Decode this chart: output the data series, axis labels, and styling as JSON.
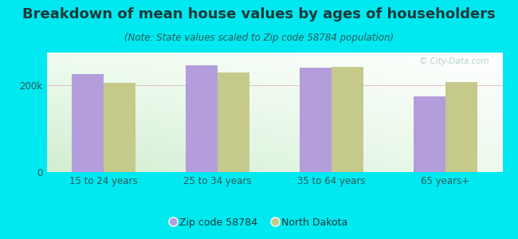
{
  "title": "Breakdown of mean house values by ages of householders",
  "subtitle": "(Note: State values scaled to Zip code 58784 population)",
  "categories": [
    "15 to 24 years",
    "25 to 34 years",
    "35 to 64 years",
    "65 years+"
  ],
  "zip_values": [
    225000,
    245000,
    240000,
    175000
  ],
  "nd_values": [
    205000,
    230000,
    242000,
    207000
  ],
  "zip_color": "#b39ddb",
  "nd_color": "#c5c98a",
  "background_outer": "#00e8f0",
  "ylim": [
    0,
    275000
  ],
  "yticks": [
    0,
    200000
  ],
  "ytick_labels": [
    "0",
    "200k"
  ],
  "legend_zip_label": "Zip code 58784",
  "legend_nd_label": "North Dakota",
  "bar_width": 0.28,
  "title_fontsize": 13,
  "subtitle_fontsize": 8.5,
  "tick_fontsize": 8.5,
  "legend_fontsize": 9,
  "title_color": "#1a3a3a",
  "subtitle_color": "#2a5a5a",
  "tick_color": "#2a5a5a",
  "gridline_color": "#d0e8d0",
  "watermark_color": "#a8c8c8"
}
